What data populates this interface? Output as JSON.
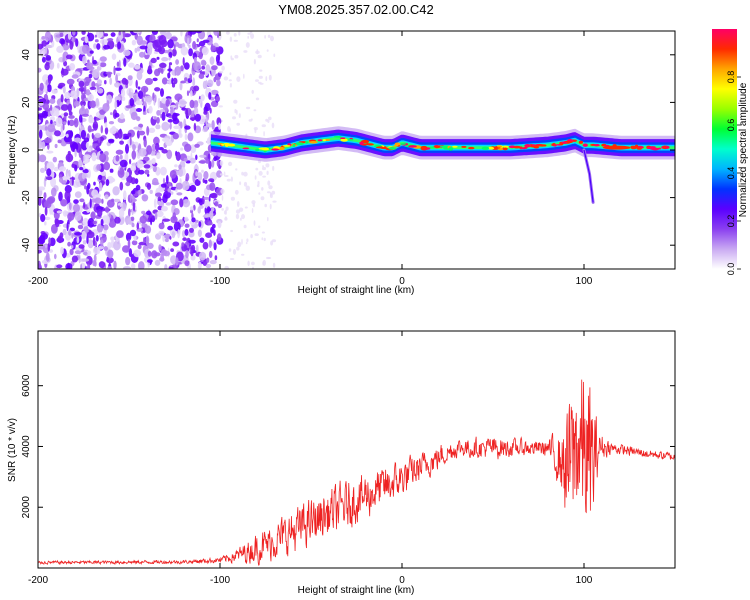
{
  "chart_data": [
    {
      "type": "heatmap",
      "title": "YM08.2025.357.02.00.C42",
      "xlabel": "Height of straight line (km)",
      "ylabel": "Frequency (Hz)",
      "xlim": [
        -200,
        150
      ],
      "ylim": [
        -50,
        50
      ],
      "x_ticks": [
        -200,
        -100,
        0,
        100
      ],
      "y_ticks": [
        -40,
        -20,
        0,
        20,
        40
      ],
      "colorbar": {
        "label": "Normalized spectral amplitude",
        "range": [
          0,
          1
        ],
        "ticks": [
          "0.0",
          "0.2",
          "0.4",
          "0.6",
          "0.8"
        ],
        "stops": [
          "#ffffff",
          "#c9a9f2",
          "#8a3ff0",
          "#5a00ff",
          "#0033ff",
          "#00b4ff",
          "#00ffcc",
          "#00ff33",
          "#99ff00",
          "#ffff00",
          "#ffa500",
          "#ff2a00",
          "#ff0066"
        ]
      },
      "ridge": {
        "x": [
          -105,
          -95,
          -85,
          -75,
          -65,
          -55,
          -45,
          -35,
          -25,
          -15,
          -10,
          -5,
          0,
          10,
          20,
          40,
          60,
          80,
          90,
          95,
          100,
          105,
          120,
          150
        ],
        "frequency": [
          3,
          2,
          1,
          0,
          1,
          3,
          4,
          5,
          4,
          2,
          1,
          1,
          3,
          1,
          1,
          1,
          1,
          2,
          3,
          4,
          2,
          2,
          1,
          1
        ]
      },
      "side_streak": {
        "x": [
          100,
          103,
          105
        ],
        "frequency": [
          0,
          -10,
          -22
        ]
      }
    },
    {
      "type": "line",
      "xlabel": "Height of straight line (km)",
      "ylabel": "SNR (10 * v/v)",
      "xlim": [
        -200,
        150
      ],
      "ylim": [
        0,
        7800
      ],
      "x_ticks": [
        -200,
        -100,
        0,
        100
      ],
      "y_ticks": [
        2000,
        4000,
        6000
      ],
      "series": [
        {
          "name": "SNR",
          "color": "#ee2222",
          "envelope": {
            "x": [
              -200,
              -120,
              -100,
              -90,
              -80,
              -70,
              -60,
              -50,
              -40,
              -30,
              -20,
              -10,
              0,
              10,
              20,
              30,
              40,
              50,
              60,
              70,
              80,
              88,
              92,
              96,
              100,
              104,
              108,
              115,
              130,
              150
            ],
            "mean": [
              180,
              200,
              260,
              420,
              650,
              900,
              1200,
              1500,
              1800,
              2100,
              2400,
              2650,
              2950,
              3300,
              3650,
              3950,
              3950,
              3950,
              3950,
              3950,
              3950,
              3500,
              3200,
              4200,
              3800,
              3200,
              4000,
              3950,
              3800,
              3650
            ],
            "spread": [
              70,
              80,
              120,
              320,
              650,
              800,
              950,
              1000,
              1050,
              1050,
              1000,
              900,
              800,
              650,
              550,
              400,
              450,
              500,
              400,
              350,
              350,
              1500,
              3400,
              3600,
              3600,
              3600,
              700,
              250,
              200,
              180
            ]
          }
        }
      ]
    }
  ]
}
